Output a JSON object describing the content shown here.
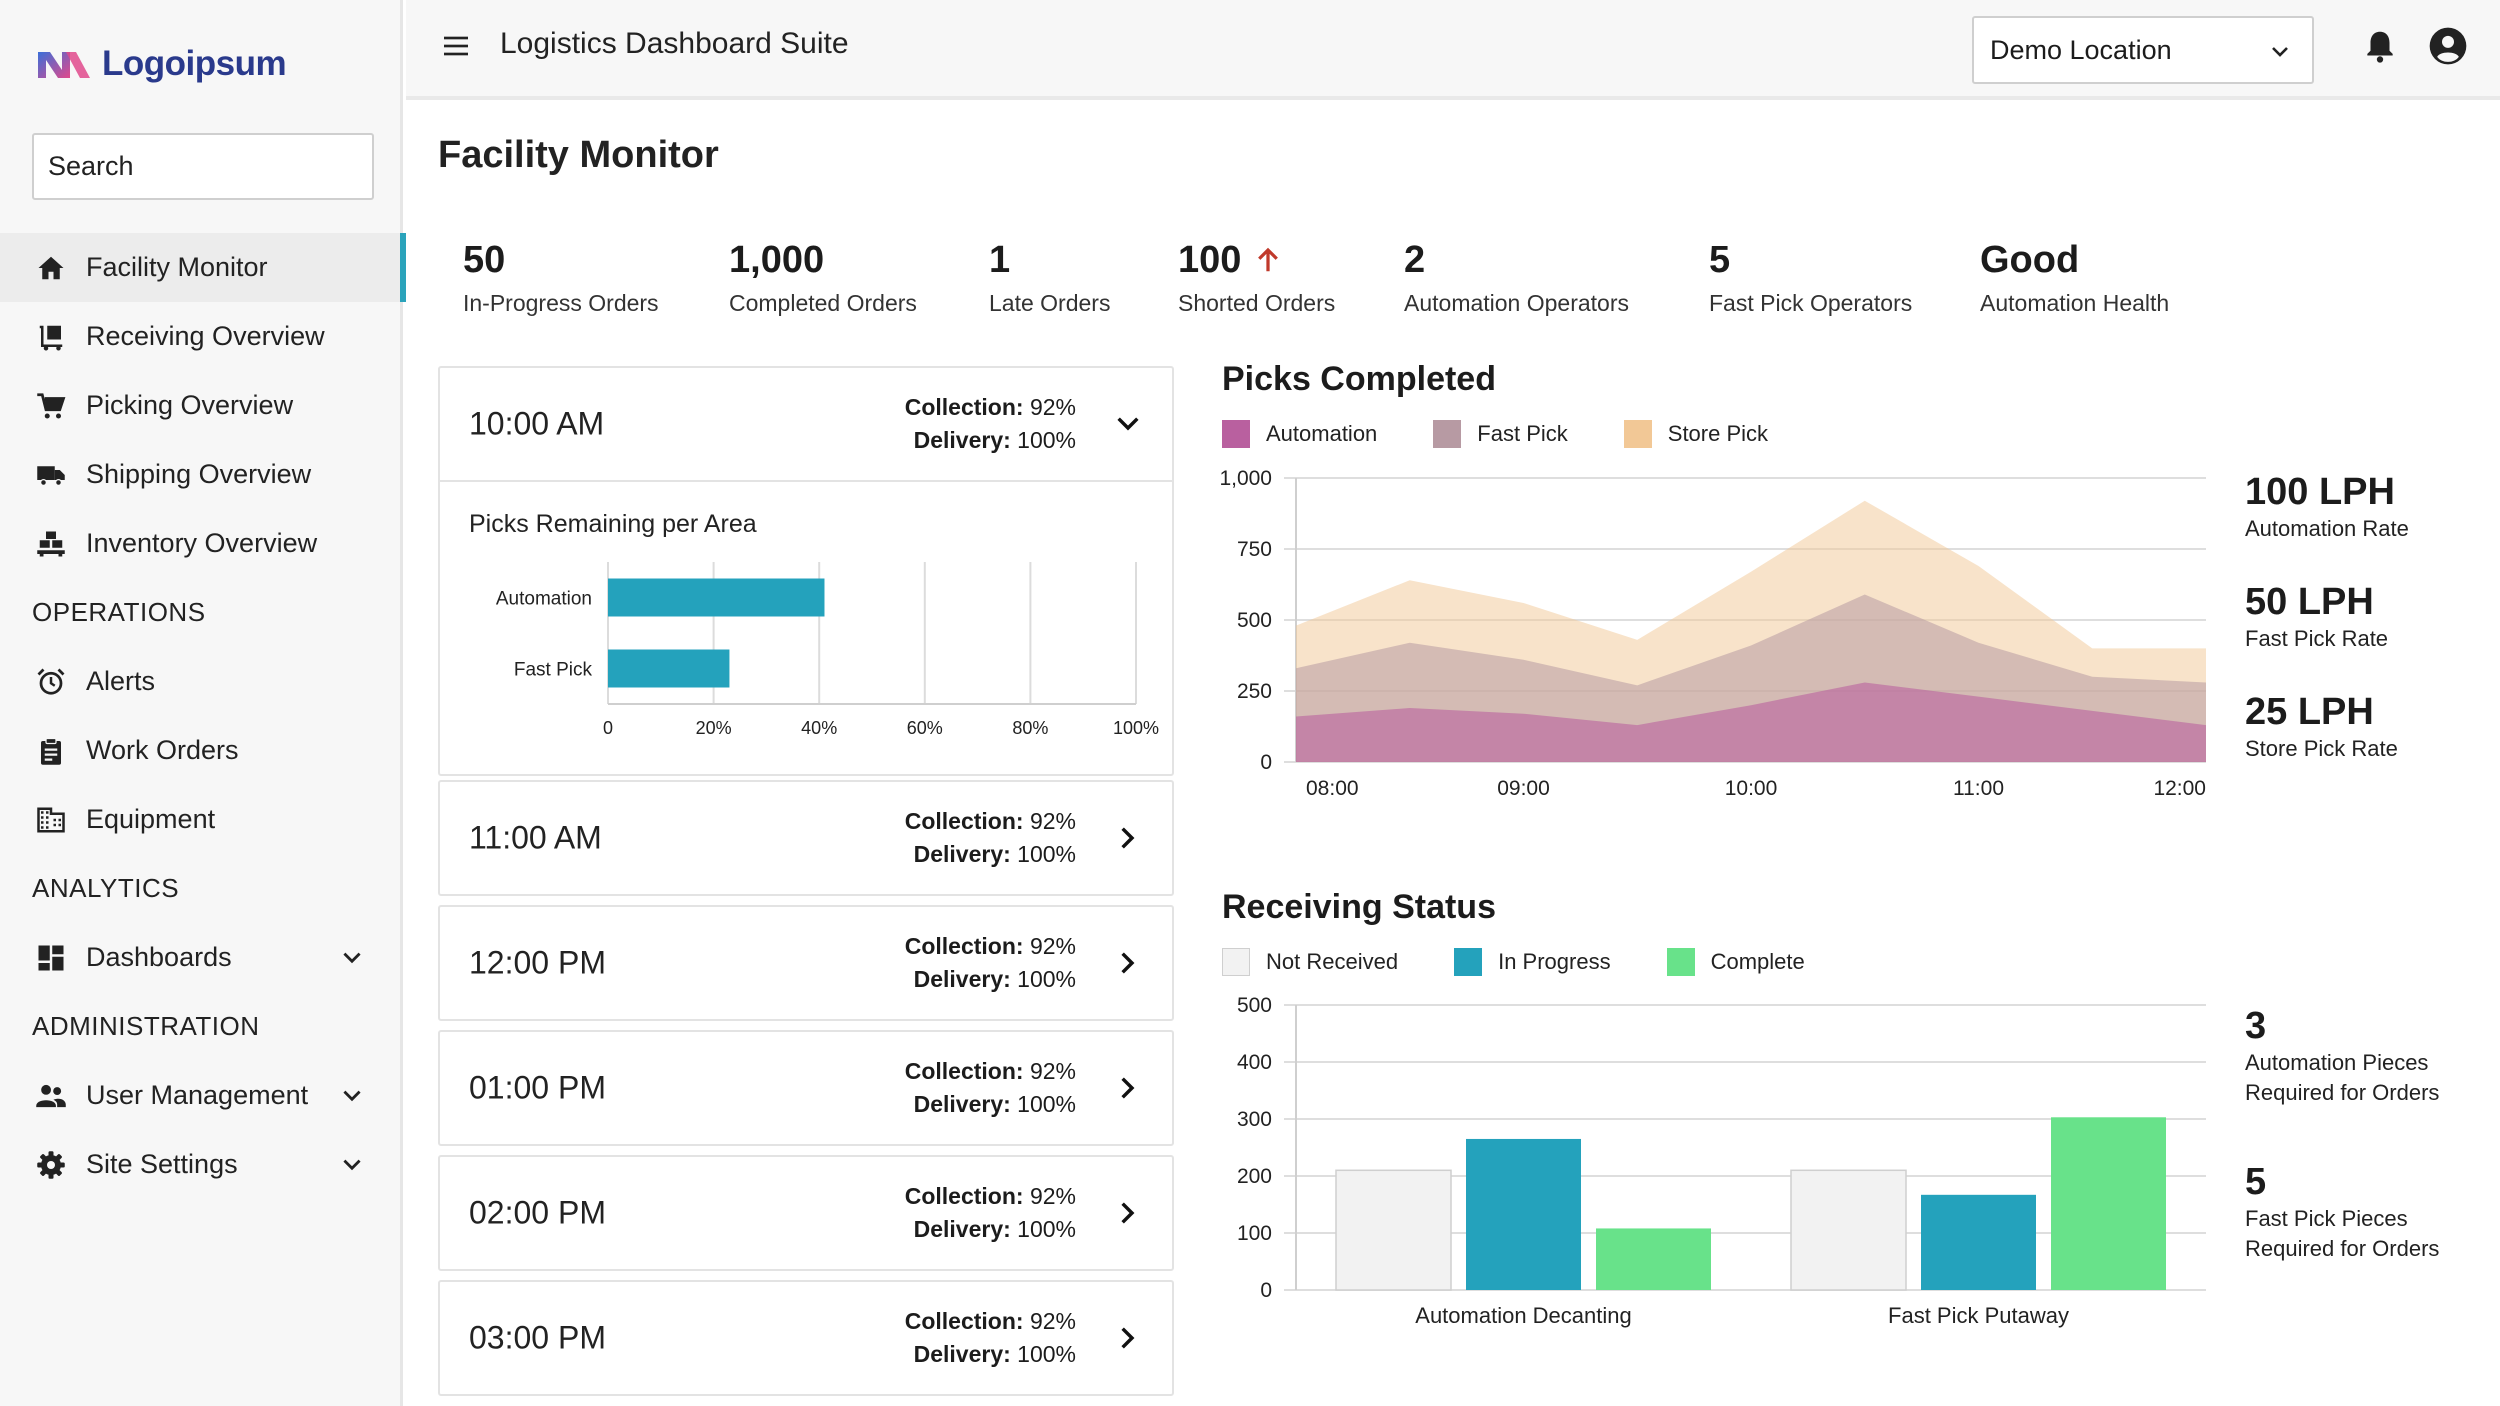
{
  "app": {
    "logo_text": "Logoipsum",
    "title": "Logistics Dashboard Suite",
    "location": "Demo Location"
  },
  "search": {
    "placeholder": "Search"
  },
  "sidebar": {
    "items": [
      {
        "label": "Facility Monitor"
      },
      {
        "label": "Receiving Overview"
      },
      {
        "label": "Picking Overview"
      },
      {
        "label": "Shipping Overview"
      },
      {
        "label": "Inventory Overview"
      }
    ],
    "operations": {
      "header": "OPERATIONS",
      "items": [
        {
          "label": "Alerts"
        },
        {
          "label": "Work Orders"
        },
        {
          "label": "Equipment"
        }
      ]
    },
    "analytics": {
      "header": "ANALYTICS",
      "items": [
        {
          "label": "Dashboards"
        }
      ]
    },
    "administration": {
      "header": "ADMINISTRATION",
      "items": [
        {
          "label": "User Management"
        },
        {
          "label": "Site Settings"
        }
      ]
    }
  },
  "page": {
    "title": "Facility Monitor"
  },
  "kpis": [
    {
      "value": "50",
      "label": "In-Progress Orders"
    },
    {
      "value": "1,000",
      "label": "Completed Orders"
    },
    {
      "value": "1",
      "label": "Late Orders"
    },
    {
      "value": "100",
      "label": "Shorted Orders"
    },
    {
      "value": "2",
      "label": "Automation Operators"
    },
    {
      "value": "5",
      "label": "Fast Pick Operators"
    },
    {
      "value": "Good",
      "label": "Automation Health"
    }
  ],
  "stats_labels": {
    "collection": "Collection:",
    "delivery": "Delivery:"
  },
  "time_cards": [
    {
      "time": "10:00 AM",
      "collection": "92%",
      "delivery": "100%",
      "expanded": true
    },
    {
      "time": "11:00 AM",
      "collection": "92%",
      "delivery": "100%"
    },
    {
      "time": "12:00 PM",
      "collection": "92%",
      "delivery": "100%"
    },
    {
      "time": "01:00 PM",
      "collection": "92%",
      "delivery": "100%"
    },
    {
      "time": "02:00 PM",
      "collection": "92%",
      "delivery": "100%"
    },
    {
      "time": "03:00 PM",
      "collection": "92%",
      "delivery": "100%"
    }
  ],
  "picks_remaining": {
    "title": "Picks Remaining per Area"
  },
  "picks_completed": {
    "title": "Picks Completed",
    "rates": [
      {
        "value": "100 LPH",
        "label": "Automation Rate"
      },
      {
        "value": "50 LPH",
        "label": "Fast Pick Rate"
      },
      {
        "value": "25 LPH",
        "label": "Store Pick Rate"
      }
    ]
  },
  "receiving": {
    "title": "Receiving Status",
    "pieces": [
      {
        "value": "3",
        "label_lines": [
          "Automation Pieces",
          "Required for Orders"
        ]
      },
      {
        "value": "5",
        "label_lines": [
          "Fast Pick Pieces",
          "Required for Orders"
        ]
      }
    ]
  },
  "colors": {
    "accent": "#2aa3bb",
    "automation": "#b9609f",
    "fast_pick": "#b79aa3",
    "store_pick": "#f2c896",
    "not_received": "#f2f2f2",
    "in_progress": "#24a2bc",
    "complete": "#68e28a",
    "shorted_arrow": "#c0392b"
  },
  "chart_data": [
    {
      "type": "bar",
      "orientation": "horizontal",
      "title": "Picks Remaining per Area",
      "categories": [
        "Automation",
        "Fast Pick"
      ],
      "values": [
        41,
        23
      ],
      "xlim": [
        0,
        100
      ],
      "xticks": [
        "0",
        "20%",
        "40%",
        "60%",
        "80%",
        "100%"
      ],
      "color": "#24a2bc",
      "grid": true
    },
    {
      "type": "area",
      "title": "Picks Completed",
      "x": [
        "08:00",
        "08:30",
        "09:00",
        "09:30",
        "10:00",
        "10:30",
        "11:00",
        "11:30",
        "12:00"
      ],
      "xticks": [
        "08:00",
        "09:00",
        "10:00",
        "11:00",
        "12:00"
      ],
      "ylim": [
        0,
        1000
      ],
      "yticks": [
        "0",
        "250",
        "500",
        "750",
        "1,000"
      ],
      "legend": "top",
      "series": [
        {
          "name": "Store Pick",
          "color": "#f2c896",
          "values": [
            480,
            640,
            560,
            430,
            670,
            920,
            690,
            400,
            400
          ]
        },
        {
          "name": "Fast Pick",
          "color": "#b79aa3",
          "values": [
            330,
            420,
            360,
            270,
            410,
            590,
            420,
            300,
            280
          ]
        },
        {
          "name": "Automation",
          "color": "#b9609f",
          "values": [
            160,
            190,
            170,
            130,
            200,
            280,
            230,
            180,
            130
          ]
        }
      ],
      "legend_order": [
        "Automation",
        "Fast Pick",
        "Store Pick"
      ]
    },
    {
      "type": "bar",
      "title": "Receiving Status",
      "categories": [
        "Automation Decanting",
        "Fast Pick Putaway"
      ],
      "ylim": [
        0,
        500
      ],
      "yticks": [
        "0",
        "100",
        "200",
        "300",
        "400",
        "500"
      ],
      "series": [
        {
          "name": "Not Received",
          "color": "#f2f2f2",
          "values": [
            210,
            210
          ]
        },
        {
          "name": "In Progress",
          "color": "#24a2bc",
          "values": [
            265,
            167
          ]
        },
        {
          "name": "Complete",
          "color": "#68e28a",
          "values": [
            108,
            303
          ]
        }
      ],
      "legend": "top"
    }
  ]
}
